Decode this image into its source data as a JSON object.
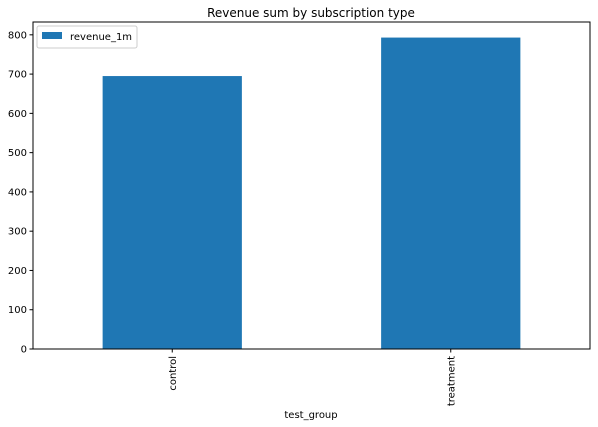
{
  "chart_data": {
    "type": "bar",
    "title": "Revenue sum by subscription type",
    "xlabel": "test_group",
    "ylabel": "",
    "categories": [
      "control",
      "treatment"
    ],
    "series": [
      {
        "name": "revenue_1m",
        "values": [
          695,
          793
        ],
        "color": "#1f77b4"
      }
    ],
    "yticks": [
      0,
      100,
      200,
      300,
      400,
      500,
      600,
      700,
      800
    ],
    "ytick_labels": [
      "0",
      "100",
      "200",
      "300",
      "400",
      "500",
      "600",
      "700",
      "800"
    ],
    "ylim": [
      0,
      832.65
    ],
    "grid": false,
    "legend_position": "top-left"
  }
}
